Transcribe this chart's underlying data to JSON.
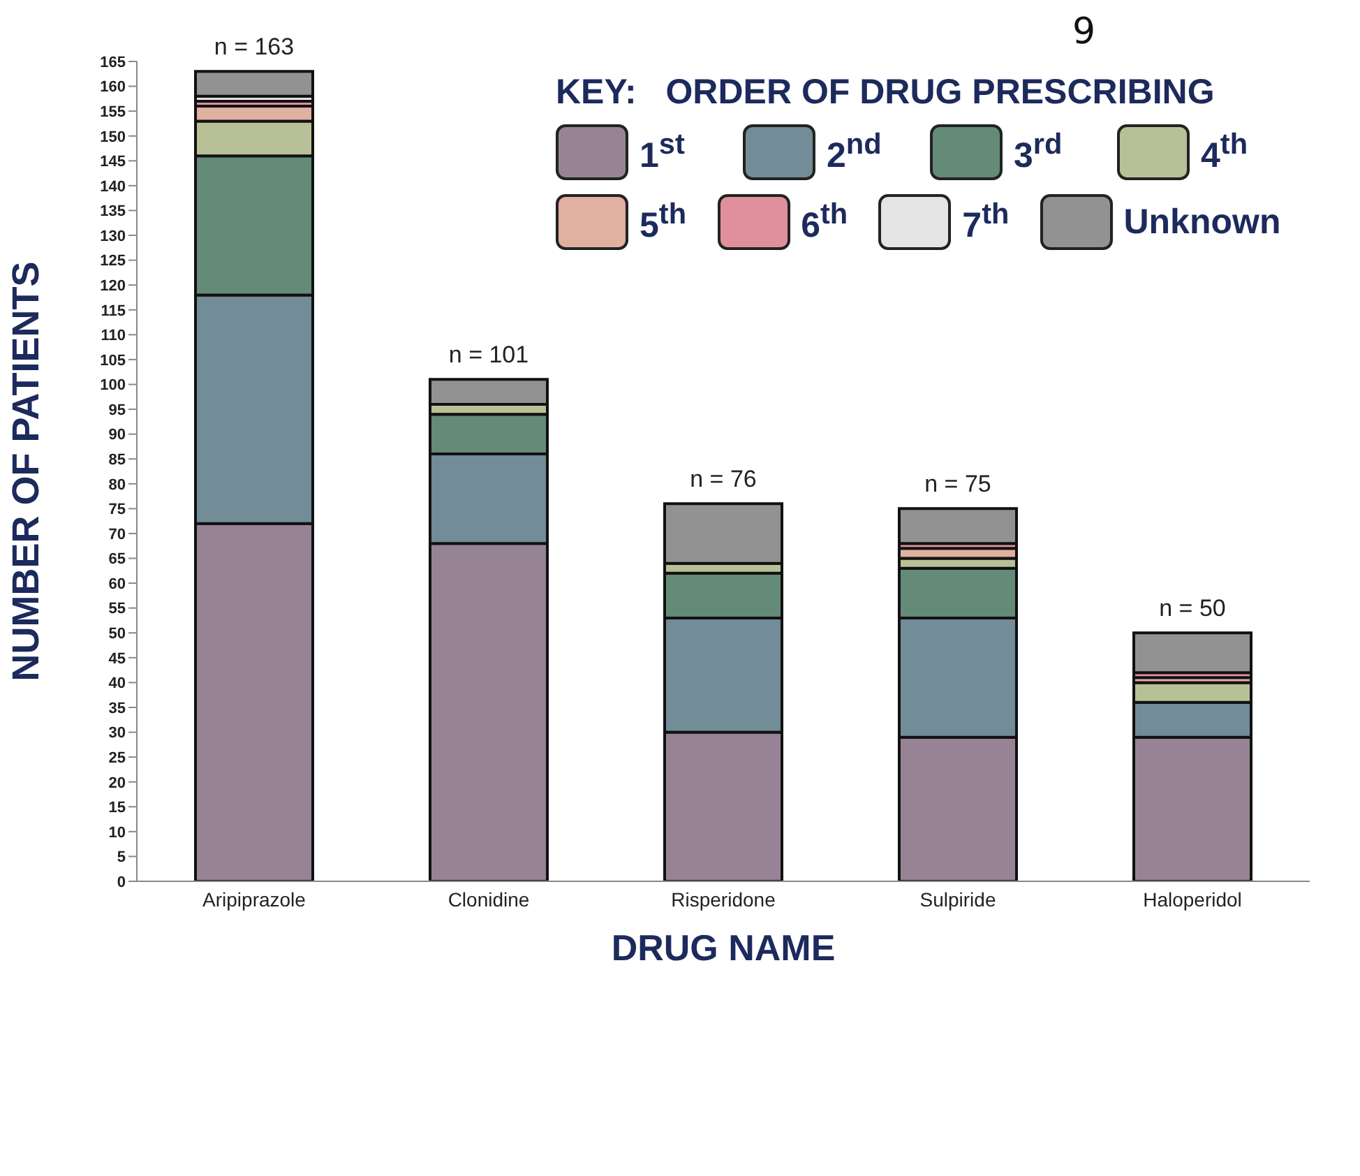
{
  "chart_data": {
    "type": "bar",
    "stacked": true,
    "xlabel": "DRUG NAME",
    "ylabel": "NUMBER OF PATIENTS",
    "legend_title": "KEY:   ORDER OF DRUG PRESCRIBING",
    "legend": "top right",
    "annotations": [
      "9"
    ],
    "categories": [
      "Aripiprazole",
      "Clonidine",
      "Risperidone",
      "Sulpiride",
      "Haloperidol"
    ],
    "series": [
      {
        "name": "1$^{st}$",
        "color": "#968496",
        "values": [
          72,
          68,
          30,
          29,
          29
        ]
      },
      {
        "name": "2$^{nd}$",
        "color": "#728c98",
        "values": [
          46,
          18,
          23,
          24,
          7
        ]
      },
      {
        "name": "3$^{rd}$",
        "color": "#648a78",
        "values": [
          28,
          8,
          9,
          10,
          0
        ]
      },
      {
        "name": "4$^{th}$",
        "color": "#b8c098",
        "values": [
          7,
          2,
          2,
          2,
          4
        ]
      },
      {
        "name": "5$^{th}$",
        "color": "#e0b0a0",
        "values": [
          3,
          0,
          0,
          2,
          1
        ]
      },
      {
        "name": "6$^{th}$",
        "color": "#e0909c",
        "values": [
          1,
          0,
          0,
          1,
          1
        ]
      },
      {
        "name": "7$^{th}$",
        "color": "#e4e4e4",
        "values": [
          1,
          0,
          0,
          0,
          0
        ]
      },
      {
        "name": "Unknown",
        "color": "#929292",
        "values": [
          5,
          5,
          12,
          7,
          8
        ]
      }
    ],
    "totals": [
      "n = 163",
      "n = 101",
      "n = 76",
      "n = 75",
      "n = 50"
    ],
    "ylim": [
      0,
      165
    ],
    "yticks": [
      0,
      5,
      10,
      15,
      20,
      25,
      30,
      35,
      40,
      45,
      50,
      55,
      60,
      65,
      70,
      75,
      80,
      85,
      90,
      95,
      100,
      105,
      110,
      115,
      120,
      125,
      130,
      135,
      140,
      145,
      150,
      155,
      160,
      165
    ]
  }
}
